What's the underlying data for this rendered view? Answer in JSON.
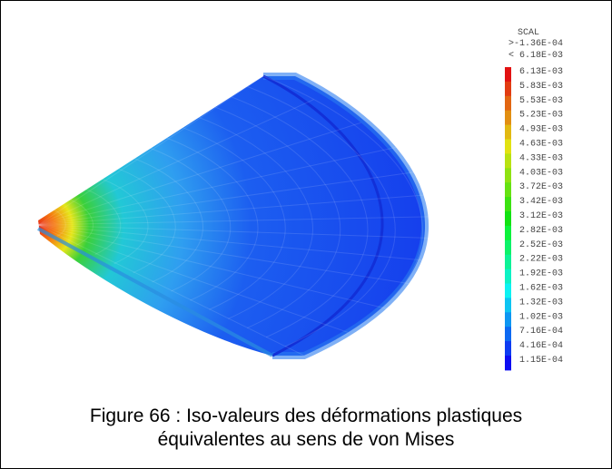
{
  "figure": {
    "legend": {
      "title": "SCAL",
      "max_label": ">-1.36E-04",
      "min_label": "< 6.18E-03",
      "labels": [
        "6.13E-03",
        "5.83E-03",
        "5.53E-03",
        "5.23E-03",
        "4.93E-03",
        "4.63E-03",
        "4.33E-03",
        "4.03E-03",
        "3.72E-03",
        "3.42E-03",
        "3.12E-03",
        "2.82E-03",
        "2.52E-03",
        "2.22E-03",
        "1.92E-03",
        "1.62E-03",
        "1.32E-03",
        "1.02E-03",
        "7.16E-04",
        "4.16E-04",
        "1.15E-04"
      ]
    },
    "caption": {
      "line1": "Figure 66 : Iso-valeurs des déformations plastiques",
      "line2": "équivalentes au sens de von Mises"
    }
  }
}
